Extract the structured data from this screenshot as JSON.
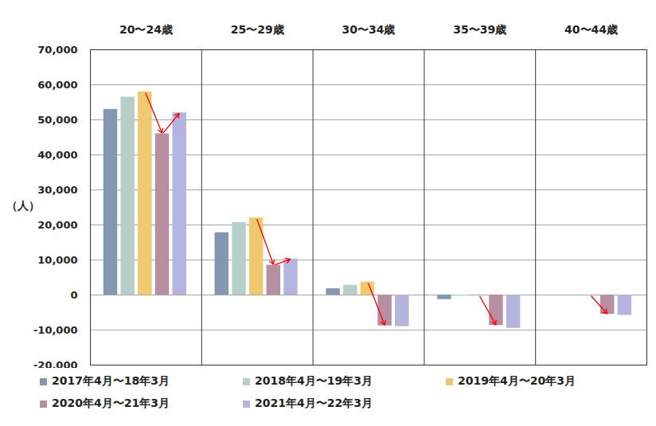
{
  "chart_data": {
    "type": "bar",
    "ylabel": "（人）",
    "categories": [
      "20〜24歳",
      "25〜29歳",
      "30〜34歳",
      "35〜39歳",
      "40〜44歳"
    ],
    "series": [
      {
        "name": "2017年4月〜18年3月",
        "color": "#8497b0",
        "values": [
          53000,
          17800,
          1800,
          -1300,
          0
        ]
      },
      {
        "name": "2018年4月〜19年3月",
        "color": "#b8cec8",
        "values": [
          56500,
          20700,
          2800,
          -300,
          0
        ]
      },
      {
        "name": "2019年4月〜20年3月",
        "color": "#f0c870",
        "values": [
          58000,
          22000,
          3700,
          0,
          0
        ]
      },
      {
        "name": "2020年4月〜21年3月",
        "color": "#b68fa3",
        "values": [
          46000,
          8500,
          -8800,
          -8700,
          -5500
        ]
      },
      {
        "name": "2021年4月〜22年3月",
        "color": "#b4b4de",
        "values": [
          52000,
          10300,
          -9000,
          -9500,
          -5800
        ]
      }
    ],
    "ylim": [
      -20000,
      70000
    ],
    "yticks": [
      {
        "value": -20000,
        "label": "-20,000"
      },
      {
        "value": -10000,
        "label": "-10,000"
      },
      0,
      {
        "value": 10000,
        "label": "10,000"
      },
      {
        "value": 20000,
        "label": "20,000"
      },
      {
        "value": 30000,
        "label": "30,000"
      },
      {
        "value": 40000,
        "label": "40,000"
      },
      {
        "value": 50000,
        "label": "50,000"
      },
      {
        "value": 60000,
        "label": "60,000"
      },
      {
        "value": 70000,
        "label": "70,000"
      }
    ],
    "grid": true,
    "legend": "bottom"
  }
}
